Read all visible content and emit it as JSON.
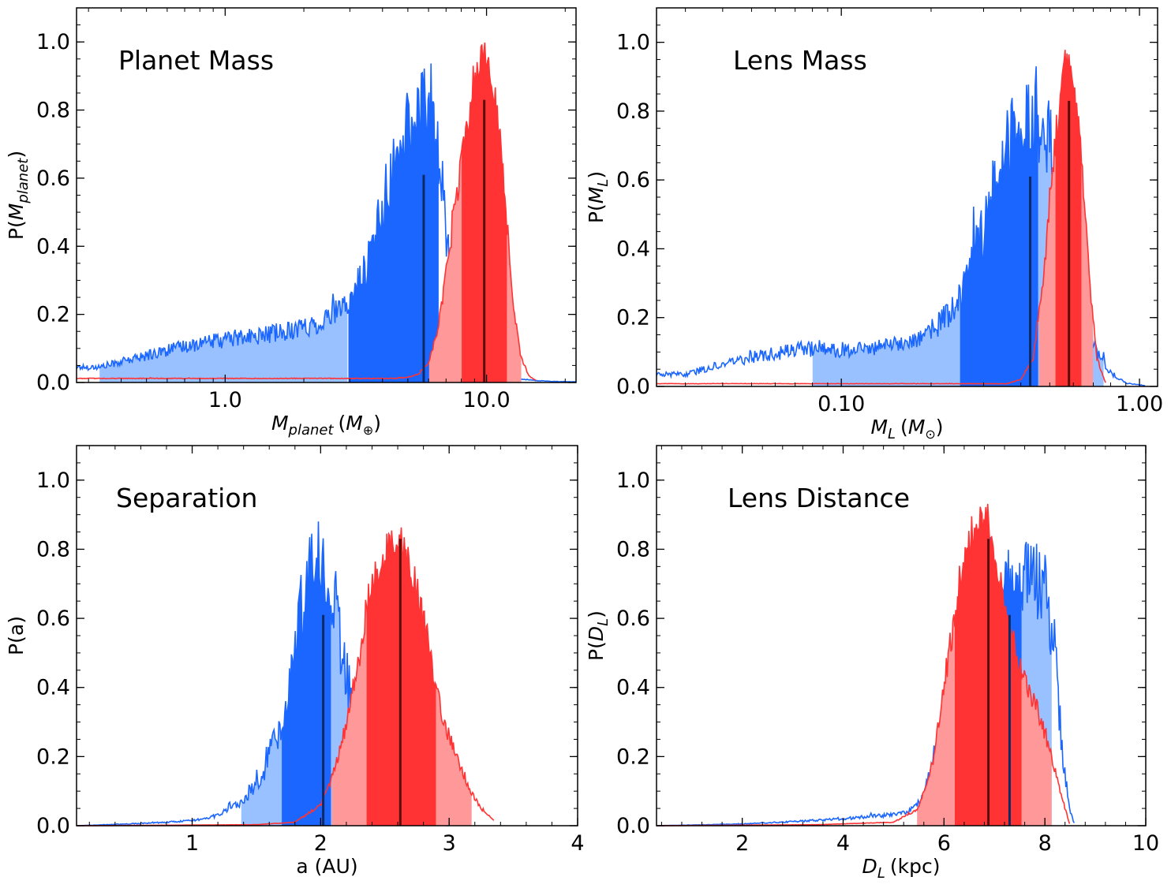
{
  "chart_data": [
    {
      "type": "area",
      "title": "Planet Mass",
      "xscale": "log",
      "xlim": [
        0.27,
        22
      ],
      "ylim": [
        0,
        1.1
      ],
      "xticks": [
        1.0,
        10.0
      ],
      "xtick_labels": [
        "1.0",
        "10.0"
      ],
      "yticks": [
        0.0,
        0.2,
        0.4,
        0.6,
        0.8,
        1.0
      ],
      "ytick_labels": [
        "0.0",
        "0.2",
        "0.4",
        "0.6",
        "0.8",
        "1.0"
      ],
      "xlabel_main": "M",
      "xlabel_sub": "planet",
      "xlabel_unit": "(M",
      "xlabel_unit_sub": "⊕",
      "xlabel_close": ")",
      "ylabel_main": "P(M",
      "ylabel_sub": "planet",
      "ylabel_close": ")",
      "series": [
        {
          "name": "blue",
          "color": "#1a66ff",
          "light_color": "#99c0ff",
          "x": [
            0.27,
            0.33,
            0.35,
            0.45,
            0.6,
            0.7,
            0.8,
            1.0,
            1.3,
            1.7,
            2.2,
            2.9,
            3.4,
            4.2,
            5.0,
            5.8,
            6.3,
            6.8,
            7.4,
            8.2,
            9.0,
            10.0,
            11.5,
            13.0,
            15.0,
            18.0,
            22.0
          ],
          "y": [
            0.045,
            0.045,
            0.05,
            0.07,
            0.095,
            0.105,
            0.115,
            0.125,
            0.135,
            0.15,
            0.17,
            0.22,
            0.32,
            0.55,
            0.75,
            0.82,
            0.75,
            0.55,
            0.3,
            0.15,
            0.08,
            0.04,
            0.02,
            0.012,
            0.006,
            0.003,
            0.002
          ],
          "noise": 0.12,
          "bands": {
            "outer": [
              0.33,
              2.95
            ],
            "inner": [
              2.95,
              6.6
            ]
          },
          "median": 5.75,
          "median_height": 0.61
        },
        {
          "name": "red",
          "color": "#ff3333",
          "light_color": "#ff9999",
          "x": [
            0.27,
            4.5,
            5.0,
            5.5,
            6.0,
            6.5,
            7.0,
            7.6,
            8.3,
            9.0,
            9.8,
            10.5,
            11.3,
            12.0,
            12.8,
            13.5,
            14.5,
            15.5
          ],
          "y": [
            0.012,
            0.012,
            0.015,
            0.025,
            0.06,
            0.15,
            0.32,
            0.52,
            0.72,
            0.88,
            0.97,
            0.9,
            0.7,
            0.45,
            0.2,
            0.08,
            0.02,
            0.005
          ],
          "noise": 0.05,
          "bands": {
            "outer": [
              6.0,
              13.6
            ],
            "inner": [
              8.0,
              12.0
            ]
          },
          "median": 9.8,
          "median_height": 0.83
        }
      ]
    },
    {
      "type": "area",
      "title": "Lens Mass",
      "xscale": "log",
      "xlim": [
        0.024,
        1.15
      ],
      "ylim": [
        0,
        1.1
      ],
      "xticks": [
        0.1,
        1.0
      ],
      "xtick_labels": [
        "0.10",
        "1.00"
      ],
      "yticks": [
        0.0,
        0.2,
        0.4,
        0.6,
        0.8,
        1.0
      ],
      "ytick_labels": [
        "0.0",
        "0.2",
        "0.4",
        "0.6",
        "0.8",
        "1.0"
      ],
      "xlabel_main": "M",
      "xlabel_sub": "L",
      "xlabel_unit": "(M",
      "xlabel_unit_sub": "⊙",
      "xlabel_close": ")",
      "ylabel_main": "P(M",
      "ylabel_sub": "L",
      "ylabel_close": ")",
      "series": [
        {
          "name": "blue",
          "color": "#1a66ff",
          "light_color": "#99c0ff",
          "x": [
            0.024,
            0.03,
            0.04,
            0.05,
            0.06,
            0.075,
            0.09,
            0.12,
            0.16,
            0.2,
            0.25,
            0.3,
            0.36,
            0.42,
            0.5,
            0.56,
            0.62,
            0.7,
            0.8,
            0.9,
            1.05
          ],
          "y": [
            0.035,
            0.035,
            0.065,
            0.085,
            0.095,
            0.11,
            0.105,
            0.11,
            0.125,
            0.16,
            0.25,
            0.45,
            0.7,
            0.78,
            0.7,
            0.5,
            0.3,
            0.12,
            0.04,
            0.01,
            0.002
          ],
          "noise": 0.13,
          "bands": {
            "outer": [
              0.08,
              0.76
            ],
            "inner": [
              0.25,
              0.46
            ]
          },
          "median": 0.43,
          "median_height": 0.61
        },
        {
          "name": "red",
          "color": "#ff3333",
          "light_color": "#ff9999",
          "x": [
            0.024,
            0.36,
            0.4,
            0.44,
            0.48,
            0.52,
            0.56,
            0.6,
            0.64,
            0.68,
            0.72,
            0.77
          ],
          "y": [
            0.008,
            0.008,
            0.02,
            0.08,
            0.35,
            0.7,
            0.95,
            0.92,
            0.65,
            0.3,
            0.08,
            0.01
          ],
          "noise": 0.05,
          "bands": {
            "outer": [
              0.46,
              0.7
            ],
            "inner": [
              0.52,
              0.64
            ]
          },
          "median": 0.58,
          "median_height": 0.83
        }
      ]
    },
    {
      "type": "area",
      "title": "Separation",
      "xscale": "linear",
      "xlim": [
        0.1,
        4.0
      ],
      "ylim": [
        0,
        1.1
      ],
      "xticks": [
        1,
        2,
        3,
        4
      ],
      "xtick_labels": [
        "1",
        "2",
        "3",
        "4"
      ],
      "yticks": [
        0.0,
        0.2,
        0.4,
        0.6,
        0.8,
        1.0
      ],
      "ytick_labels": [
        "0.0",
        "0.2",
        "0.4",
        "0.6",
        "0.8",
        "1.0"
      ],
      "xlabel_main": "a (AU)",
      "xlabel_sub": "",
      "xlabel_unit": "",
      "xlabel_unit_sub": "",
      "xlabel_close": "",
      "ylabel_main": "P(a)",
      "ylabel_sub": "",
      "ylabel_close": "",
      "series": [
        {
          "name": "blue",
          "color": "#1a66ff",
          "light_color": "#99c0ff",
          "x": [
            0.1,
            0.5,
            0.8,
            1.0,
            1.2,
            1.4,
            1.55,
            1.7,
            1.8,
            1.9,
            2.0,
            2.1,
            2.2,
            2.3,
            2.45,
            2.6,
            2.8,
            3.0
          ],
          "y": [
            0.0,
            0.005,
            0.01,
            0.015,
            0.03,
            0.07,
            0.15,
            0.3,
            0.5,
            0.72,
            0.78,
            0.65,
            0.45,
            0.22,
            0.07,
            0.015,
            0.003,
            0.0
          ],
          "noise": 0.13,
          "bands": {
            "outer": [
              1.38,
              2.32
            ],
            "inner": [
              1.69,
              2.08
            ]
          },
          "median": 2.02,
          "median_height": 0.61
        },
        {
          "name": "red",
          "color": "#ff3333",
          "light_color": "#ff9999",
          "x": [
            0.1,
            1.5,
            1.8,
            2.0,
            2.1,
            2.2,
            2.3,
            2.4,
            2.55,
            2.65,
            2.75,
            2.85,
            2.95,
            3.05,
            3.15,
            3.25,
            3.35
          ],
          "y": [
            0.0,
            0.003,
            0.01,
            0.06,
            0.15,
            0.3,
            0.5,
            0.7,
            0.82,
            0.8,
            0.68,
            0.5,
            0.32,
            0.2,
            0.11,
            0.05,
            0.015
          ],
          "noise": 0.06,
          "bands": {
            "outer": [
              2.08,
              3.18
            ],
            "inner": [
              2.35,
              2.9
            ]
          },
          "median": 2.62,
          "median_height": 0.83
        }
      ]
    },
    {
      "type": "area",
      "title": "Lens Distance",
      "xscale": "linear",
      "xlim": [
        0.3,
        10.0
      ],
      "ylim": [
        0,
        1.1
      ],
      "xticks": [
        2,
        4,
        6,
        8,
        10
      ],
      "xtick_labels": [
        "2",
        "4",
        "6",
        "8",
        "10"
      ],
      "yticks": [
        0.0,
        0.2,
        0.4,
        0.6,
        0.8,
        1.0
      ],
      "ytick_labels": [
        "0.0",
        "0.2",
        "0.4",
        "0.6",
        "0.8",
        "1.0"
      ],
      "xlabel_main": "D",
      "xlabel_sub": "L",
      "xlabel_unit": "(kpc)",
      "xlabel_unit_sub": "",
      "xlabel_close": "",
      "ylabel_main": "P(D",
      "ylabel_sub": "L",
      "ylabel_close": ")",
      "series": [
        {
          "name": "blue",
          "color": "#1a66ff",
          "light_color": "#99c0ff",
          "x": [
            0.3,
            2.0,
            3.0,
            4.0,
            4.8,
            5.3,
            5.6,
            5.9,
            6.2,
            6.5,
            6.8,
            7.1,
            7.4,
            7.7,
            8.0,
            8.2,
            8.35,
            8.5,
            8.6
          ],
          "y": [
            0.0,
            0.005,
            0.012,
            0.02,
            0.03,
            0.04,
            0.08,
            0.25,
            0.45,
            0.6,
            0.68,
            0.7,
            0.7,
            0.72,
            0.7,
            0.5,
            0.2,
            0.04,
            0.0
          ],
          "noise": 0.12,
          "bands": {
            "outer": [
              5.45,
              8.15
            ],
            "inner": [
              6.2,
              7.55
            ]
          },
          "median": 7.3,
          "median_height": 0.61
        },
        {
          "name": "red",
          "color": "#ff3333",
          "light_color": "#ff9999",
          "x": [
            0.3,
            3.5,
            5.0,
            5.5,
            5.8,
            6.1,
            6.4,
            6.7,
            6.9,
            7.1,
            7.3,
            7.6,
            7.9,
            8.1,
            8.3,
            8.5
          ],
          "y": [
            0.0,
            0.003,
            0.01,
            0.05,
            0.2,
            0.5,
            0.78,
            0.9,
            0.88,
            0.72,
            0.55,
            0.42,
            0.32,
            0.22,
            0.1,
            0.0
          ],
          "noise": 0.06,
          "bands": {
            "outer": [
              5.45,
              8.15
            ],
            "inner": [
              6.2,
              7.55
            ]
          },
          "median": 6.88,
          "median_height": 0.83
        }
      ]
    }
  ]
}
